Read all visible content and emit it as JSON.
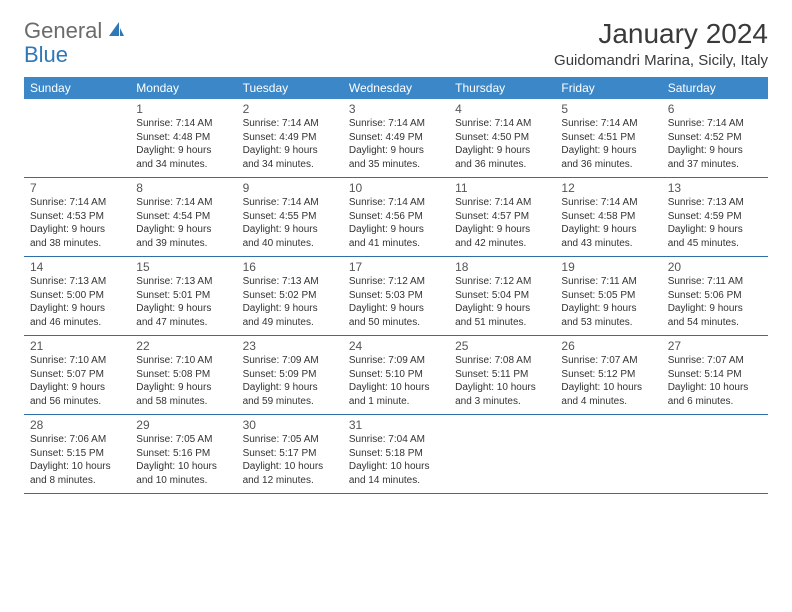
{
  "brand": {
    "part1": "General",
    "part2": "Blue"
  },
  "title": "January 2024",
  "location": "Guidomandri Marina, Sicily, Italy",
  "colors": {
    "header_bg": "#3b87c8",
    "header_text": "#ffffff",
    "rule": "#2f6fa8",
    "logo_gray": "#6b6b6b",
    "logo_blue": "#2f78b7",
    "text": "#333333"
  },
  "dayNames": [
    "Sunday",
    "Monday",
    "Tuesday",
    "Wednesday",
    "Thursday",
    "Friday",
    "Saturday"
  ],
  "weeks": [
    [
      {
        "n": "",
        "sr": "",
        "ss": "",
        "dl": ""
      },
      {
        "n": "1",
        "sr": "Sunrise: 7:14 AM",
        "ss": "Sunset: 4:48 PM",
        "dl": "Daylight: 9 hours and 34 minutes."
      },
      {
        "n": "2",
        "sr": "Sunrise: 7:14 AM",
        "ss": "Sunset: 4:49 PM",
        "dl": "Daylight: 9 hours and 34 minutes."
      },
      {
        "n": "3",
        "sr": "Sunrise: 7:14 AM",
        "ss": "Sunset: 4:49 PM",
        "dl": "Daylight: 9 hours and 35 minutes."
      },
      {
        "n": "4",
        "sr": "Sunrise: 7:14 AM",
        "ss": "Sunset: 4:50 PM",
        "dl": "Daylight: 9 hours and 36 minutes."
      },
      {
        "n": "5",
        "sr": "Sunrise: 7:14 AM",
        "ss": "Sunset: 4:51 PM",
        "dl": "Daylight: 9 hours and 36 minutes."
      },
      {
        "n": "6",
        "sr": "Sunrise: 7:14 AM",
        "ss": "Sunset: 4:52 PM",
        "dl": "Daylight: 9 hours and 37 minutes."
      }
    ],
    [
      {
        "n": "7",
        "sr": "Sunrise: 7:14 AM",
        "ss": "Sunset: 4:53 PM",
        "dl": "Daylight: 9 hours and 38 minutes."
      },
      {
        "n": "8",
        "sr": "Sunrise: 7:14 AM",
        "ss": "Sunset: 4:54 PM",
        "dl": "Daylight: 9 hours and 39 minutes."
      },
      {
        "n": "9",
        "sr": "Sunrise: 7:14 AM",
        "ss": "Sunset: 4:55 PM",
        "dl": "Daylight: 9 hours and 40 minutes."
      },
      {
        "n": "10",
        "sr": "Sunrise: 7:14 AM",
        "ss": "Sunset: 4:56 PM",
        "dl": "Daylight: 9 hours and 41 minutes."
      },
      {
        "n": "11",
        "sr": "Sunrise: 7:14 AM",
        "ss": "Sunset: 4:57 PM",
        "dl": "Daylight: 9 hours and 42 minutes."
      },
      {
        "n": "12",
        "sr": "Sunrise: 7:14 AM",
        "ss": "Sunset: 4:58 PM",
        "dl": "Daylight: 9 hours and 43 minutes."
      },
      {
        "n": "13",
        "sr": "Sunrise: 7:13 AM",
        "ss": "Sunset: 4:59 PM",
        "dl": "Daylight: 9 hours and 45 minutes."
      }
    ],
    [
      {
        "n": "14",
        "sr": "Sunrise: 7:13 AM",
        "ss": "Sunset: 5:00 PM",
        "dl": "Daylight: 9 hours and 46 minutes."
      },
      {
        "n": "15",
        "sr": "Sunrise: 7:13 AM",
        "ss": "Sunset: 5:01 PM",
        "dl": "Daylight: 9 hours and 47 minutes."
      },
      {
        "n": "16",
        "sr": "Sunrise: 7:13 AM",
        "ss": "Sunset: 5:02 PM",
        "dl": "Daylight: 9 hours and 49 minutes."
      },
      {
        "n": "17",
        "sr": "Sunrise: 7:12 AM",
        "ss": "Sunset: 5:03 PM",
        "dl": "Daylight: 9 hours and 50 minutes."
      },
      {
        "n": "18",
        "sr": "Sunrise: 7:12 AM",
        "ss": "Sunset: 5:04 PM",
        "dl": "Daylight: 9 hours and 51 minutes."
      },
      {
        "n": "19",
        "sr": "Sunrise: 7:11 AM",
        "ss": "Sunset: 5:05 PM",
        "dl": "Daylight: 9 hours and 53 minutes."
      },
      {
        "n": "20",
        "sr": "Sunrise: 7:11 AM",
        "ss": "Sunset: 5:06 PM",
        "dl": "Daylight: 9 hours and 54 minutes."
      }
    ],
    [
      {
        "n": "21",
        "sr": "Sunrise: 7:10 AM",
        "ss": "Sunset: 5:07 PM",
        "dl": "Daylight: 9 hours and 56 minutes."
      },
      {
        "n": "22",
        "sr": "Sunrise: 7:10 AM",
        "ss": "Sunset: 5:08 PM",
        "dl": "Daylight: 9 hours and 58 minutes."
      },
      {
        "n": "23",
        "sr": "Sunrise: 7:09 AM",
        "ss": "Sunset: 5:09 PM",
        "dl": "Daylight: 9 hours and 59 minutes."
      },
      {
        "n": "24",
        "sr": "Sunrise: 7:09 AM",
        "ss": "Sunset: 5:10 PM",
        "dl": "Daylight: 10 hours and 1 minute."
      },
      {
        "n": "25",
        "sr": "Sunrise: 7:08 AM",
        "ss": "Sunset: 5:11 PM",
        "dl": "Daylight: 10 hours and 3 minutes."
      },
      {
        "n": "26",
        "sr": "Sunrise: 7:07 AM",
        "ss": "Sunset: 5:12 PM",
        "dl": "Daylight: 10 hours and 4 minutes."
      },
      {
        "n": "27",
        "sr": "Sunrise: 7:07 AM",
        "ss": "Sunset: 5:14 PM",
        "dl": "Daylight: 10 hours and 6 minutes."
      }
    ],
    [
      {
        "n": "28",
        "sr": "Sunrise: 7:06 AM",
        "ss": "Sunset: 5:15 PM",
        "dl": "Daylight: 10 hours and 8 minutes."
      },
      {
        "n": "29",
        "sr": "Sunrise: 7:05 AM",
        "ss": "Sunset: 5:16 PM",
        "dl": "Daylight: 10 hours and 10 minutes."
      },
      {
        "n": "30",
        "sr": "Sunrise: 7:05 AM",
        "ss": "Sunset: 5:17 PM",
        "dl": "Daylight: 10 hours and 12 minutes."
      },
      {
        "n": "31",
        "sr": "Sunrise: 7:04 AM",
        "ss": "Sunset: 5:18 PM",
        "dl": "Daylight: 10 hours and 14 minutes."
      },
      {
        "n": "",
        "sr": "",
        "ss": "",
        "dl": ""
      },
      {
        "n": "",
        "sr": "",
        "ss": "",
        "dl": ""
      },
      {
        "n": "",
        "sr": "",
        "ss": "",
        "dl": ""
      }
    ]
  ]
}
